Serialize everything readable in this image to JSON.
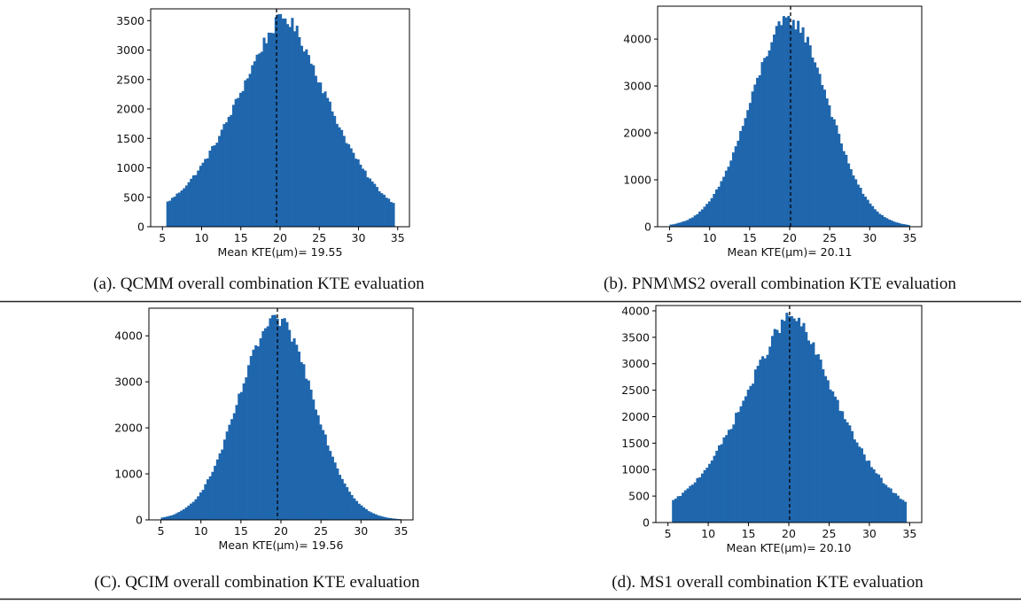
{
  "figure": {
    "captions": [
      "(a). QCMM overall combination KTE evaluation",
      "(b). PNM\\MS2 overall combination KTE evaluation",
      "(C). QCIM overall combination KTE evaluation",
      "(d). MS1 overall combination KTE evaluation"
    ]
  },
  "chart_data": [
    {
      "type": "bar",
      "subtype": "histogram",
      "xlabel": "Mean KTE(μm)= 19.55",
      "xlim": [
        3.5,
        36.5
      ],
      "ylim": [
        0,
        3700
      ],
      "xticks": [
        5,
        10,
        15,
        20,
        25,
        30,
        35
      ],
      "yticks": [
        0,
        500,
        1000,
        1500,
        2000,
        2500,
        3000,
        3500
      ],
      "mean_line": 19.55,
      "bin_width": 0.3,
      "distribution": {
        "x_min": 5.5,
        "x_max": 34.5,
        "peak_x": 20.5,
        "peak_count": 3550,
        "left_width": 6.9,
        "right_width": 6.4,
        "shape": "smooth"
      },
      "color": "#1f66ad"
    },
    {
      "type": "bar",
      "subtype": "histogram",
      "xlabel": "Mean KTE(μm)= 20.11",
      "xlim": [
        3.5,
        36.5
      ],
      "ylim": [
        0,
        4700
      ],
      "xticks": [
        5,
        10,
        15,
        20,
        25,
        30,
        35
      ],
      "yticks": [
        0,
        1000,
        2000,
        3000,
        4000
      ],
      "mean_line": 20.11,
      "bin_width": 0.3,
      "distribution": {
        "x_min": 5.0,
        "x_max": 35.0,
        "peak_x": 20.0,
        "peak_count": 4400,
        "left_width": 4.9,
        "right_width": 4.8,
        "shape": "gauss"
      },
      "color": "#1f66ad"
    },
    {
      "type": "bar",
      "subtype": "histogram",
      "xlabel": "Mean KTE(μm)= 19.56",
      "xlim": [
        3.5,
        36.5
      ],
      "ylim": [
        0,
        4600
      ],
      "xticks": [
        5,
        10,
        15,
        20,
        25,
        30,
        35
      ],
      "yticks": [
        0,
        1000,
        2000,
        3000,
        4000
      ],
      "mean_line": 19.56,
      "bin_width": 0.3,
      "distribution": {
        "x_min": 5.0,
        "x_max": 35.0,
        "peak_x": 19.5,
        "peak_count": 4330,
        "left_width": 4.8,
        "right_width": 4.6,
        "shape": "gauss"
      },
      "color": "#1f66ad"
    },
    {
      "type": "bar",
      "subtype": "histogram",
      "xlabel": "Mean KTE(μm)= 20.10",
      "xlim": [
        3.5,
        36.5
      ],
      "ylim": [
        0,
        4100
      ],
      "xticks": [
        5,
        10,
        15,
        20,
        25,
        30,
        35
      ],
      "yticks": [
        0,
        500,
        1000,
        1500,
        2000,
        2500,
        3000,
        3500,
        4000
      ],
      "mean_line": 20.1,
      "bin_width": 0.3,
      "distribution": {
        "x_min": 5.5,
        "x_max": 34.5,
        "peak_x": 20.3,
        "peak_count": 3900,
        "left_width": 6.6,
        "right_width": 6.3,
        "shape": "smooth"
      },
      "color": "#1f66ad"
    }
  ]
}
